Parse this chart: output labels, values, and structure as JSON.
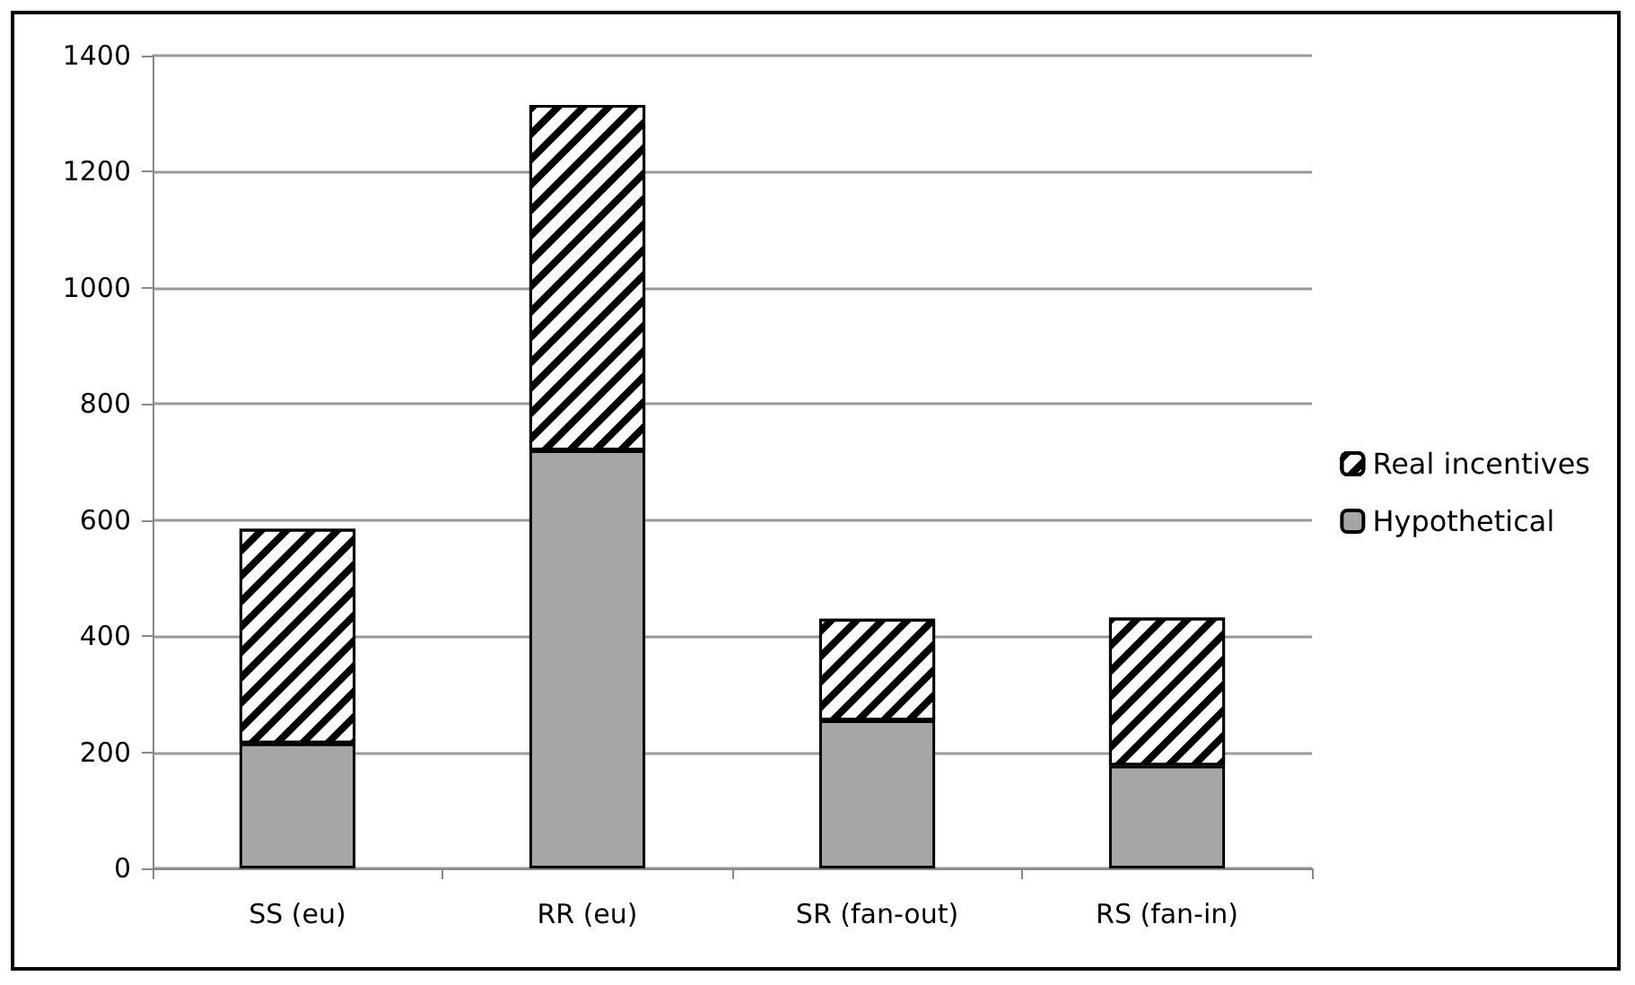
{
  "chart_data": {
    "type": "bar",
    "stacked": true,
    "categories": [
      "SS (eu)",
      "RR (eu)",
      "SR (fan-out)",
      "RS (fan-in)"
    ],
    "series": [
      {
        "name": "Hypothetical",
        "color": "#a6a6a6",
        "values": [
          215,
          720,
          255,
          177
        ]
      },
      {
        "name": "Real incentives",
        "color": "#000000",
        "values": [
          370,
          595,
          175,
          255
        ]
      }
    ],
    "ylim": [
      0,
      1400
    ],
    "yticks": [
      0,
      200,
      400,
      600,
      800,
      1000,
      1200,
      1400
    ],
    "grid": "y",
    "legend": "right"
  }
}
